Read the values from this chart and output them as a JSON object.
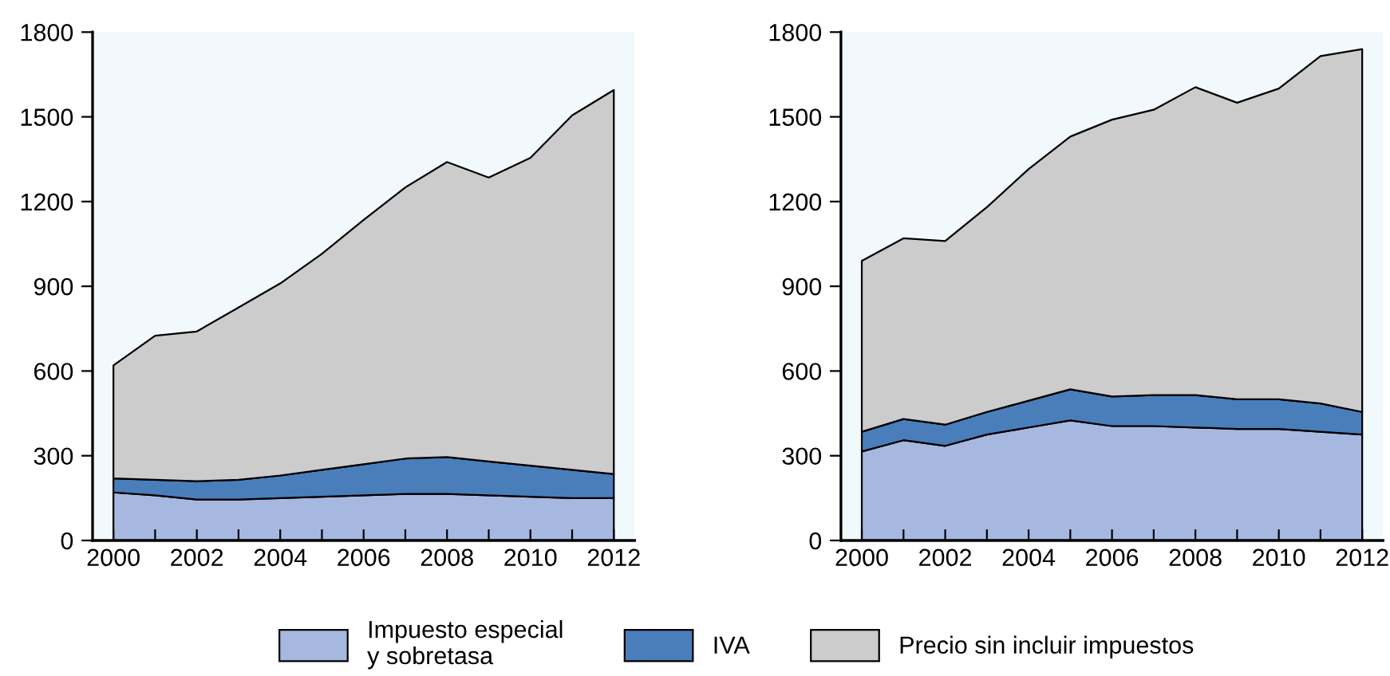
{
  "chart_data": [
    {
      "type": "area",
      "stacked": true,
      "x": [
        2000,
        2001,
        2002,
        2003,
        2004,
        2005,
        2006,
        2007,
        2008,
        2009,
        2010,
        2011,
        2012
      ],
      "series": [
        {
          "name": "Impuesto especial\ny sobretasa",
          "color": "#a7b8e0",
          "values": [
            170,
            160,
            145,
            145,
            150,
            155,
            160,
            165,
            165,
            160,
            155,
            150,
            150
          ]
        },
        {
          "name": "IVA",
          "color": "#4a7ebb",
          "values": [
            50,
            55,
            65,
            70,
            80,
            95,
            110,
            125,
            130,
            120,
            110,
            100,
            85
          ]
        },
        {
          "name": "Precio sin incluir impuestos",
          "color": "#cccccc",
          "values": [
            400,
            510,
            530,
            610,
            680,
            765,
            865,
            960,
            1045,
            1005,
            1090,
            1255,
            1360
          ]
        }
      ],
      "xlim": [
        1999.5,
        2012.5
      ],
      "xticks": [
        2000,
        {
          "value": 2001,
          "label": null
        },
        2002,
        {
          "value": 2003,
          "label": null
        },
        2004,
        {
          "value": 2005,
          "label": null
        },
        2006,
        {
          "value": 2007,
          "label": null
        },
        2008,
        {
          "value": 2009,
          "label": null
        },
        2010,
        {
          "value": 2011,
          "label": null
        },
        2012
      ],
      "ylim": [
        0,
        1800
      ],
      "yticks": [
        0,
        300,
        600,
        900,
        1200,
        1500,
        1800
      ],
      "grid": false,
      "legend": "bottom"
    },
    {
      "type": "area",
      "stacked": true,
      "x": [
        2000,
        2001,
        2002,
        2003,
        2004,
        2005,
        2006,
        2007,
        2008,
        2009,
        2010,
        2011,
        2012
      ],
      "series": [
        {
          "color": "#a7b8e0",
          "values": [
            315,
            355,
            335,
            375,
            400,
            425,
            405,
            405,
            400,
            395,
            395,
            385,
            375
          ]
        },
        {
          "color": "#4a7ebb",
          "values": [
            70,
            75,
            75,
            80,
            95,
            110,
            105,
            110,
            115,
            105,
            105,
            100,
            80
          ]
        },
        {
          "color": "#cccccc",
          "values": [
            605,
            640,
            650,
            725,
            820,
            895,
            980,
            1010,
            1090,
            1050,
            1100,
            1230,
            1285
          ]
        }
      ],
      "xlim": [
        1999.5,
        2012.5
      ],
      "xticks": [
        2000,
        {
          "value": 2001,
          "label": null
        },
        2002,
        {
          "value": 2003,
          "label": null
        },
        2004,
        {
          "value": 2005,
          "label": null
        },
        2006,
        {
          "value": 2007,
          "label": null
        },
        2008,
        {
          "value": 2009,
          "label": null
        },
        2010,
        {
          "value": 2011,
          "label": null
        },
        2012
      ],
      "ylim": [
        0,
        1800
      ],
      "yticks": [
        0,
        300,
        600,
        900,
        1200,
        1500,
        1800
      ],
      "grid": false
    }
  ]
}
